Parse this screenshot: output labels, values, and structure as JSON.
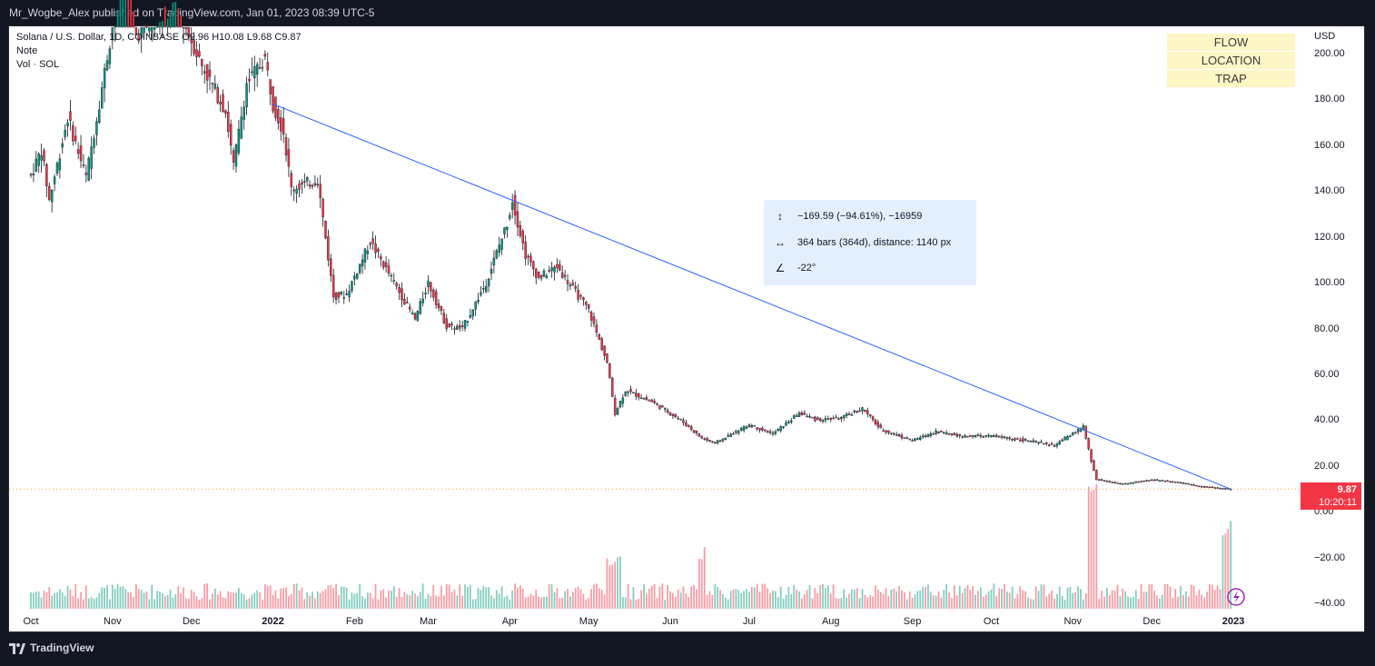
{
  "header": {
    "publish_line": "Mr_Wogbe_Alex published on TradingView.com, Jan 01, 2023 08:39 UTC-5"
  },
  "legend": {
    "symbol_line": "Solana / U.S. Dollar, 1D, COINBASE O9.96 H10.08 L9.68 C9.87",
    "note": "Note",
    "volume": "Vol · SOL"
  },
  "tags": [
    "FLOW",
    "LOCATION",
    "TRAP"
  ],
  "measure": {
    "price_change": "−169.59 (−94.61%), −16959",
    "bars": "364 bars (364d), distance: 1140 px",
    "angle": "-22°",
    "icons": [
      "vertical-range-icon",
      "horizontal-range-icon",
      "angle-icon"
    ]
  },
  "price_badge": {
    "price": "9.87",
    "countdown": "10:20:11",
    "color": "#f23645"
  },
  "footer": {
    "brand": "TradingView"
  },
  "colors": {
    "up": "#089981",
    "down": "#f23645",
    "trendline": "#2962ff",
    "tags_bg": "#fff6c6",
    "measure_bg": "#e3effd"
  },
  "chart_data": {
    "type": "candlestick",
    "title": "Solana / U.S. Dollar, 1D, COINBASE",
    "currency": "USD",
    "ylim": [
      -40,
      200
    ],
    "y_ticks": [
      "200.00",
      "180.00",
      "160.00",
      "140.00",
      "120.00",
      "100.00",
      "80.00",
      "60.00",
      "40.00",
      "20.00",
      "0.00",
      "−20.00",
      "−40.00"
    ],
    "x_ticks": [
      "Oct",
      "Nov",
      "Dec",
      "2022",
      "Feb",
      "Mar",
      "Apr",
      "May",
      "Jun",
      "Jul",
      "Aug",
      "Sep",
      "Oct",
      "Nov",
      "Dec",
      "2023"
    ],
    "close_series": [
      {
        "date": "2021-10-01",
        "close": 147
      },
      {
        "date": "2021-10-05",
        "close": 158
      },
      {
        "date": "2021-10-08",
        "close": 136
      },
      {
        "date": "2021-10-15",
        "close": 172
      },
      {
        "date": "2021-10-22",
        "close": 146
      },
      {
        "date": "2021-10-26",
        "close": 172
      },
      {
        "date": "2021-11-06",
        "close": 245
      },
      {
        "date": "2021-11-10",
        "close": 208
      },
      {
        "date": "2021-11-25",
        "close": 222
      },
      {
        "date": "2021-12-05",
        "close": 195
      },
      {
        "date": "2021-12-14",
        "close": 175
      },
      {
        "date": "2021-12-17",
        "close": 151
      },
      {
        "date": "2021-12-22",
        "close": 187
      },
      {
        "date": "2021-12-29",
        "close": 198
      },
      {
        "date": "2022-01-01",
        "close": 178
      },
      {
        "date": "2022-01-05",
        "close": 166
      },
      {
        "date": "2022-01-08",
        "close": 141
      },
      {
        "date": "2022-01-18",
        "close": 145
      },
      {
        "date": "2022-01-24",
        "close": 94
      },
      {
        "date": "2022-01-29",
        "close": 95
      },
      {
        "date": "2022-02-07",
        "close": 118
      },
      {
        "date": "2022-02-16",
        "close": 100
      },
      {
        "date": "2022-02-24",
        "close": 84
      },
      {
        "date": "2022-03-01",
        "close": 100
      },
      {
        "date": "2022-03-08",
        "close": 81
      },
      {
        "date": "2022-03-14",
        "close": 80
      },
      {
        "date": "2022-03-23",
        "close": 100
      },
      {
        "date": "2022-03-31",
        "close": 126
      },
      {
        "date": "2022-04-02",
        "close": 136
      },
      {
        "date": "2022-04-07",
        "close": 112
      },
      {
        "date": "2022-04-12",
        "close": 102
      },
      {
        "date": "2022-04-19",
        "close": 107
      },
      {
        "date": "2022-04-24",
        "close": 99
      },
      {
        "date": "2022-05-01",
        "close": 88
      },
      {
        "date": "2022-05-08",
        "close": 65
      },
      {
        "date": "2022-05-11",
        "close": 43
      },
      {
        "date": "2022-05-15",
        "close": 53
      },
      {
        "date": "2022-05-25",
        "close": 48
      },
      {
        "date": "2022-06-05",
        "close": 40
      },
      {
        "date": "2022-06-13",
        "close": 32
      },
      {
        "date": "2022-06-18",
        "close": 30
      },
      {
        "date": "2022-07-01",
        "close": 38
      },
      {
        "date": "2022-07-10",
        "close": 34
      },
      {
        "date": "2022-07-20",
        "close": 43
      },
      {
        "date": "2022-07-27",
        "close": 40
      },
      {
        "date": "2022-08-05",
        "close": 41
      },
      {
        "date": "2022-08-13",
        "close": 45
      },
      {
        "date": "2022-08-20",
        "close": 36
      },
      {
        "date": "2022-09-01",
        "close": 31
      },
      {
        "date": "2022-09-10",
        "close": 35
      },
      {
        "date": "2022-09-20",
        "close": 33
      },
      {
        "date": "2022-10-01",
        "close": 33
      },
      {
        "date": "2022-10-15",
        "close": 31
      },
      {
        "date": "2022-10-25",
        "close": 29
      },
      {
        "date": "2022-11-05",
        "close": 37
      },
      {
        "date": "2022-11-08",
        "close": 22
      },
      {
        "date": "2022-11-10",
        "close": 14
      },
      {
        "date": "2022-11-20",
        "close": 12
      },
      {
        "date": "2022-12-01",
        "close": 14
      },
      {
        "date": "2022-12-10",
        "close": 13
      },
      {
        "date": "2022-12-20",
        "close": 11
      },
      {
        "date": "2022-12-31",
        "close": 9.87
      }
    ],
    "trendline": {
      "from": {
        "date": "2022-01-01",
        "price": 178
      },
      "to": {
        "date": "2022-12-31",
        "price": 9.87
      }
    },
    "last_price": 9.87
  }
}
